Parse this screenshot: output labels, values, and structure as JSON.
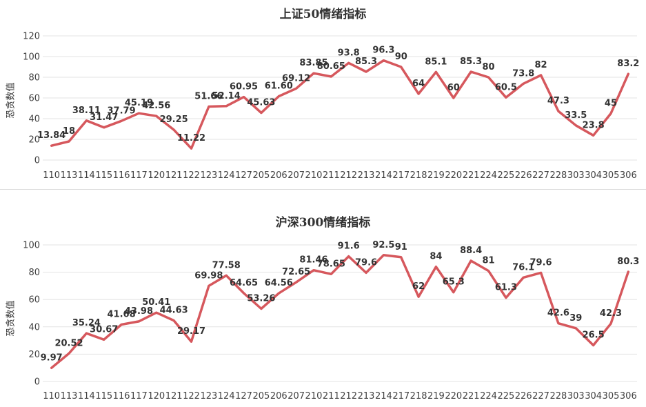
{
  "chart_data": [
    {
      "type": "line",
      "title": "上证50情绪指标",
      "xlabel": "",
      "ylabel": "恐贪数值",
      "ylim": [
        0,
        120
      ],
      "yticks": [
        0,
        20,
        40,
        60,
        80,
        100,
        120
      ],
      "grid": true,
      "color": "#d6585d",
      "categories": [
        "110",
        "113",
        "114",
        "115",
        "116",
        "117",
        "120",
        "121",
        "122",
        "123",
        "124",
        "127",
        "205",
        "206",
        "207",
        "210",
        "211",
        "212",
        "213",
        "214",
        "217",
        "218",
        "219",
        "220",
        "221",
        "224",
        "225",
        "226",
        "227",
        "228",
        "303",
        "304",
        "305",
        "306"
      ],
      "values": [
        13.84,
        18,
        38.11,
        31.47,
        37.79,
        45.19,
        42.56,
        29.25,
        11.22,
        51.66,
        52.14,
        60.95,
        45.63,
        61.6,
        69.12,
        83.85,
        80.65,
        93.8,
        85.3,
        96.3,
        90,
        64,
        85.1,
        60,
        85.3,
        80,
        60.5,
        73.8,
        82,
        47.3,
        33.5,
        23.8,
        45,
        83.2
      ],
      "data_labels": [
        "13.84",
        "18",
        "38.11",
        "31.47",
        "37.79",
        "45.19",
        "42.56",
        "29.25",
        "11.22",
        "51.66",
        "52.14",
        "60.95",
        "45.63",
        "61.60",
        "69.12",
        "83.85",
        "80.65",
        "93.8",
        "85.3",
        "96.3",
        "90",
        "64",
        "85.1",
        "60",
        "85.3",
        "80",
        "60.5",
        "73.8",
        "82",
        "47.3",
        "33.5",
        "23.8",
        "45",
        "83.2"
      ]
    },
    {
      "type": "line",
      "title": "沪深300情绪指标",
      "xlabel": "",
      "ylabel": "恐贪数值",
      "ylim": [
        0,
        100
      ],
      "yticks": [
        0,
        20,
        40,
        60,
        80,
        100
      ],
      "grid": true,
      "color": "#d6585d",
      "categories": [
        "110",
        "113",
        "114",
        "115",
        "116",
        "117",
        "120",
        "121",
        "122",
        "123",
        "124",
        "127",
        "205",
        "206",
        "207",
        "210",
        "211",
        "212",
        "213",
        "214",
        "217",
        "218",
        "219",
        "220",
        "221",
        "224",
        "225",
        "226",
        "227",
        "228",
        "303",
        "304",
        "305",
        "306"
      ],
      "values": [
        9.97,
        20.52,
        35.24,
        30.67,
        41.68,
        43.98,
        50.41,
        44.63,
        29.17,
        69.98,
        77.58,
        64.65,
        53.26,
        64.56,
        72.65,
        81.46,
        78.65,
        91.6,
        79.6,
        92.5,
        91,
        62,
        84,
        65.3,
        88.4,
        81,
        61.3,
        76.1,
        79.6,
        42.6,
        39,
        26.5,
        42.3,
        80.3
      ],
      "data_labels": [
        "9.97",
        "20.52",
        "35.24",
        "30.67",
        "41.68",
        "43.98",
        "50.41",
        "44.63",
        "29.17",
        "69.98",
        "77.58",
        "64.65",
        "53.26",
        "64.56",
        "72.65",
        "81.46",
        "78.65",
        "91.6",
        "79.6",
        "92.5",
        "91",
        "62",
        "84",
        "65.3",
        "88.4",
        "81",
        "61.3",
        "76.1",
        "79.6",
        "42.6",
        "39",
        "26.5",
        "42.3",
        "80.3"
      ]
    }
  ]
}
